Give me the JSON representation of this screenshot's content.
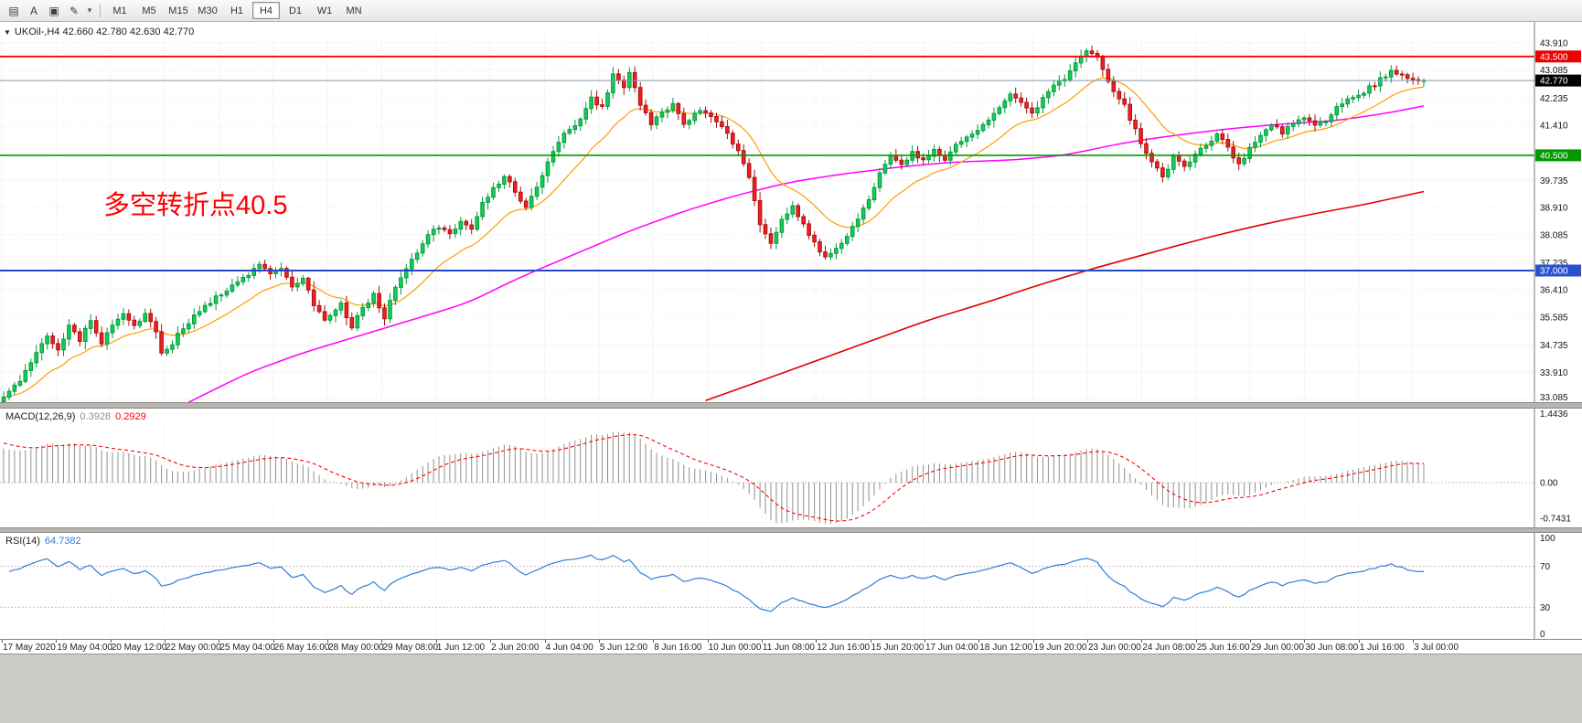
{
  "toolbar": {
    "icons": [
      {
        "name": "chart-window-icon",
        "glyph": "▤"
      },
      {
        "name": "text-tool-icon",
        "glyph": "A"
      },
      {
        "name": "template-icon",
        "glyph": "▣"
      },
      {
        "name": "draw-tool-icon",
        "glyph": "✎"
      },
      {
        "name": "dropdown-arrow-icon",
        "glyph": "▾"
      }
    ],
    "timeframes": [
      "M1",
      "M5",
      "M15",
      "M30",
      "H1",
      "H4",
      "D1",
      "W1",
      "MN"
    ],
    "active_timeframe": "H4"
  },
  "chart": {
    "collapse_arrow": "▼",
    "symbol_ohlc": "UKOil-,H4 42.660 42.780 42.630 42.770",
    "annotation": {
      "text": "多空转折点40.5",
      "color": "#ff0000"
    },
    "price_axis": {
      "grid_labels": [
        {
          "text": "43.910",
          "price": 43.91
        },
        {
          "text": "43.085",
          "price": 43.085
        },
        {
          "text": "42.235",
          "price": 42.235
        },
        {
          "text": "41.410",
          "price": 41.41
        },
        {
          "text": "39.735",
          "price": 39.735
        },
        {
          "text": "38.910",
          "price": 38.91
        },
        {
          "text": "38.085",
          "price": 38.085
        },
        {
          "text": "37.235",
          "price": 37.235
        },
        {
          "text": "36.410",
          "price": 36.41
        },
        {
          "text": "35.585",
          "price": 35.585
        },
        {
          "text": "34.735",
          "price": 34.735
        },
        {
          "text": "33.910",
          "price": 33.91
        },
        {
          "text": "33.085",
          "price": 33.085
        }
      ],
      "badges": [
        {
          "text": "43.500",
          "price": 43.5,
          "bg": "#ee0000"
        },
        {
          "text": "42.770",
          "price": 42.77,
          "bg": "#000000"
        },
        {
          "text": "40.500",
          "price": 40.5,
          "bg": "#009a00"
        },
        {
          "text": "37.000",
          "price": 37.0,
          "bg": "#2952d3"
        }
      ]
    },
    "levels": [
      {
        "price": 43.5,
        "color": "#ff0000",
        "width": 1.8
      },
      {
        "price": 42.77,
        "color": "#8099ad",
        "width": 1
      },
      {
        "price": 40.5,
        "color": "#009a00",
        "width": 1.6
      },
      {
        "price": 37.0,
        "color": "#2546cf",
        "width": 2
      }
    ]
  },
  "chart_data": {
    "type": "candlestick",
    "symbol": "UKOil-",
    "timeframe": "H4",
    "open": "42.660",
    "high": "42.780",
    "low": "42.630",
    "close": "42.770",
    "bars": 262,
    "price_min": 33.085,
    "price_max": 43.91,
    "close_anchors": [
      [
        0,
        33.1
      ],
      [
        2,
        33.45
      ],
      [
        4,
        33.95
      ],
      [
        6,
        34.45
      ],
      [
        8,
        35.05
      ],
      [
        10,
        34.65
      ],
      [
        12,
        35.3
      ],
      [
        14,
        34.9
      ],
      [
        16,
        35.45
      ],
      [
        18,
        34.75
      ],
      [
        20,
        35.35
      ],
      [
        22,
        35.75
      ],
      [
        24,
        35.3
      ],
      [
        26,
        35.7
      ],
      [
        28,
        35.1
      ],
      [
        29,
        34.45
      ],
      [
        31,
        34.8
      ],
      [
        33,
        35.25
      ],
      [
        35,
        35.65
      ],
      [
        38,
        36.05
      ],
      [
        40,
        36.3
      ],
      [
        43,
        36.6
      ],
      [
        45,
        36.9
      ],
      [
        47,
        37.2
      ],
      [
        49,
        36.85
      ],
      [
        51,
        37.05
      ],
      [
        53,
        36.55
      ],
      [
        55,
        36.75
      ],
      [
        57,
        35.95
      ],
      [
        59,
        35.45
      ],
      [
        60,
        35.7
      ],
      [
        62,
        35.95
      ],
      [
        64,
        35.3
      ],
      [
        66,
        35.85
      ],
      [
        68,
        36.3
      ],
      [
        70,
        35.55
      ],
      [
        72,
        36.5
      ],
      [
        74,
        37.1
      ],
      [
        76,
        37.55
      ],
      [
        78,
        38.05
      ],
      [
        80,
        38.35
      ],
      [
        82,
        38.1
      ],
      [
        84,
        38.5
      ],
      [
        86,
        38.3
      ],
      [
        88,
        39.05
      ],
      [
        90,
        39.45
      ],
      [
        92,
        39.85
      ],
      [
        94,
        39.4
      ],
      [
        96,
        38.95
      ],
      [
        98,
        39.6
      ],
      [
        100,
        40.3
      ],
      [
        102,
        40.9
      ],
      [
        104,
        41.3
      ],
      [
        106,
        41.55
      ],
      [
        108,
        42.25
      ],
      [
        110,
        41.95
      ],
      [
        112,
        42.95
      ],
      [
        114,
        42.55
      ],
      [
        115,
        43.05
      ],
      [
        117,
        42.0
      ],
      [
        119,
        41.45
      ],
      [
        121,
        41.8
      ],
      [
        123,
        42.0
      ],
      [
        125,
        41.45
      ],
      [
        127,
        41.75
      ],
      [
        129,
        41.85
      ],
      [
        131,
        41.5
      ],
      [
        133,
        41.15
      ],
      [
        135,
        40.6
      ],
      [
        137,
        39.85
      ],
      [
        139,
        38.45
      ],
      [
        141,
        37.8
      ],
      [
        143,
        38.55
      ],
      [
        145,
        38.95
      ],
      [
        147,
        38.35
      ],
      [
        149,
        37.85
      ],
      [
        151,
        37.4
      ],
      [
        153,
        37.65
      ],
      [
        155,
        38.05
      ],
      [
        157,
        38.55
      ],
      [
        159,
        39.1
      ],
      [
        161,
        39.9
      ],
      [
        163,
        40.45
      ],
      [
        165,
        40.15
      ],
      [
        167,
        40.6
      ],
      [
        169,
        40.3
      ],
      [
        171,
        40.7
      ],
      [
        173,
        40.35
      ],
      [
        175,
        40.85
      ],
      [
        177,
        41.05
      ],
      [
        179,
        41.3
      ],
      [
        181,
        41.5
      ],
      [
        183,
        41.9
      ],
      [
        185,
        42.4
      ],
      [
        187,
        42.05
      ],
      [
        189,
        41.75
      ],
      [
        191,
        42.25
      ],
      [
        193,
        42.6
      ],
      [
        195,
        42.85
      ],
      [
        197,
        43.25
      ],
      [
        199,
        43.7
      ],
      [
        201,
        43.5
      ],
      [
        202,
        43.05
      ],
      [
        204,
        42.45
      ],
      [
        206,
        42.0
      ],
      [
        208,
        41.25
      ],
      [
        210,
        40.55
      ],
      [
        212,
        40.05
      ],
      [
        213,
        39.8
      ],
      [
        215,
        40.45
      ],
      [
        217,
        40.15
      ],
      [
        219,
        40.55
      ],
      [
        221,
        40.75
      ],
      [
        223,
        41.15
      ],
      [
        225,
        40.7
      ],
      [
        227,
        40.2
      ],
      [
        229,
        40.7
      ],
      [
        231,
        41.05
      ],
      [
        233,
        41.45
      ],
      [
        235,
        41.2
      ],
      [
        237,
        41.5
      ],
      [
        239,
        41.7
      ],
      [
        241,
        41.35
      ],
      [
        243,
        41.55
      ],
      [
        245,
        41.95
      ],
      [
        247,
        42.15
      ],
      [
        249,
        42.3
      ],
      [
        251,
        42.55
      ],
      [
        253,
        42.8
      ],
      [
        255,
        43.05
      ],
      [
        257,
        42.9
      ],
      [
        259,
        42.85
      ],
      [
        261,
        42.77
      ]
    ],
    "ma_fast_period": 16,
    "ma_medium_anchors": [
      [
        34,
        33.0
      ],
      [
        45,
        33.9
      ],
      [
        55,
        34.5
      ],
      [
        65,
        35.0
      ],
      [
        75,
        35.5
      ],
      [
        85,
        36.0
      ],
      [
        95,
        36.8
      ],
      [
        105,
        37.5
      ],
      [
        115,
        38.2
      ],
      [
        125,
        38.8
      ],
      [
        135,
        39.3
      ],
      [
        145,
        39.7
      ],
      [
        155,
        39.95
      ],
      [
        165,
        40.15
      ],
      [
        175,
        40.3
      ],
      [
        185,
        40.35
      ],
      [
        195,
        40.5
      ],
      [
        205,
        40.85
      ],
      [
        215,
        41.1
      ],
      [
        225,
        41.3
      ],
      [
        235,
        41.45
      ],
      [
        245,
        41.55
      ],
      [
        255,
        41.8
      ],
      [
        261,
        42.0
      ]
    ],
    "ma_slow_anchors": [
      [
        129,
        33.05
      ],
      [
        140,
        33.7
      ],
      [
        150,
        34.3
      ],
      [
        160,
        34.9
      ],
      [
        170,
        35.5
      ],
      [
        180,
        36.0
      ],
      [
        190,
        36.55
      ],
      [
        200,
        37.05
      ],
      [
        210,
        37.5
      ],
      [
        220,
        37.95
      ],
      [
        230,
        38.35
      ],
      [
        240,
        38.7
      ],
      [
        250,
        39.0
      ],
      [
        261,
        39.4
      ]
    ],
    "colors": {
      "up": "#12cf58",
      "up_border": "#059a3e",
      "down": "#f32020",
      "down_border": "#aa0e0e",
      "ma_fast": "#ff9c00",
      "ma_medium": "#ff00ff",
      "ma_slow": "#e00000"
    }
  },
  "macd": {
    "label": "MACD(12,26,9)",
    "main_value": "0.3928",
    "signal_value": "0.2929",
    "axis_labels": [
      {
        "text": "1.4436",
        "v": 1.4436
      },
      {
        "text": "0.00",
        "v": 0
      },
      {
        "text": "-0.7431",
        "v": -0.7431
      }
    ],
    "colors": {
      "histogram": "#8f8f8f",
      "signal": "#ff0000"
    }
  },
  "rsi": {
    "label": "RSI(14)",
    "value": "64.7382",
    "axis_labels": [
      {
        "text": "100",
        "v": 100
      },
      {
        "text": "70",
        "v": 70
      },
      {
        "text": "30",
        "v": 30
      },
      {
        "text": "0",
        "v": 0
      }
    ],
    "level_lines": [
      70,
      30
    ],
    "color": "#2f7ed8"
  },
  "time_axis": [
    "17 May 2020",
    "19 May 04:00",
    "20 May 12:00",
    "22 May 00:00",
    "25 May 04:00",
    "26 May 16:00",
    "28 May 00:00",
    "29 May 08:00",
    "1 Jun 12:00",
    "2 Jun 20:00",
    "4 Jun 04:00",
    "5 Jun 12:00",
    "8 Jun 16:00",
    "10 Jun 00:00",
    "11 Jun 08:00",
    "12 Jun 16:00",
    "15 Jun 20:00",
    "17 Jun 04:00",
    "18 Jun 12:00",
    "19 Jun 20:00",
    "23 Jun 00:00",
    "24 Jun 08:00",
    "25 Jun 16:00",
    "29 Jun 00:00",
    "30 Jun 08:00",
    "1 Jul 16:00",
    "3 Jul 00:00"
  ]
}
